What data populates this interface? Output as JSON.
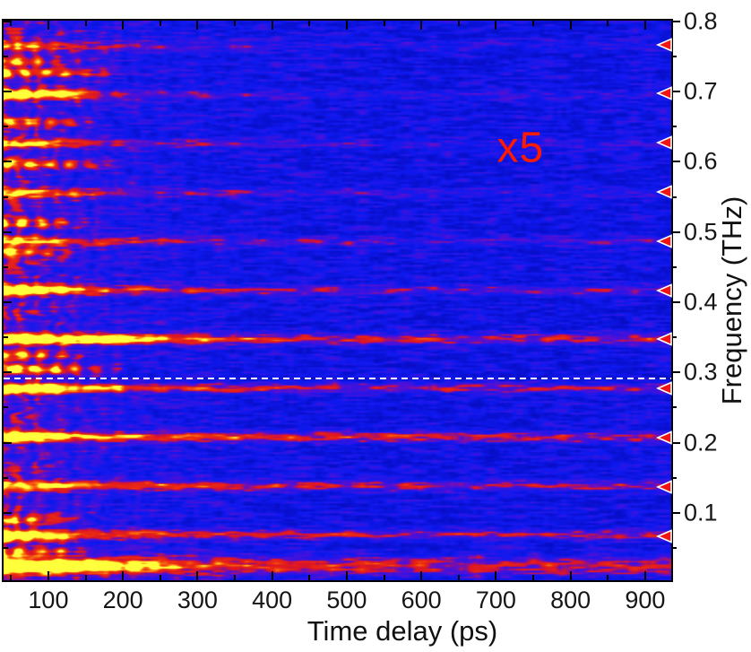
{
  "figure": {
    "background": "#ffffff"
  },
  "axes": {
    "x": {
      "label": "Time delay (ps)",
      "majors": [
        100,
        200,
        300,
        400,
        500,
        600,
        700,
        800,
        900
      ],
      "labels": [
        "100",
        "200",
        "300",
        "400",
        "500",
        "600",
        "700",
        "800",
        "900"
      ],
      "minors": [
        50,
        150,
        250,
        350,
        450,
        550,
        650,
        750,
        850
      ]
    },
    "y": {
      "label": "Frequency (THz)",
      "majors": [
        0.1,
        0.2,
        0.3,
        0.4,
        0.5,
        0.6,
        0.7,
        0.8
      ],
      "labels": [
        "0.1",
        "0.2",
        "0.3",
        "0.4",
        "0.5",
        "0.6",
        "0.7",
        "0.8"
      ],
      "minors": [
        0.05,
        0.15,
        0.25,
        0.35,
        0.45,
        0.55,
        0.65,
        0.75
      ]
    }
  },
  "annotations": {
    "gain_label": {
      "text": "x5",
      "color": "#ff1a00",
      "t": 733,
      "f": 0.62
    },
    "dashed_line": {
      "f": 0.291,
      "color": "#ffffff"
    }
  },
  "markers": {
    "shape": "left-pointing-triangle",
    "color": "#f01414",
    "outline": "#ffffff"
  },
  "chart_data": {
    "type": "heatmap",
    "title": "",
    "xlabel": "Time delay (ps)",
    "ylabel": "Frequency (THz)",
    "xlim": [
      40,
      935
    ],
    "ylim": [
      0.004,
      0.801
    ],
    "x_major_ticks": [
      100,
      200,
      300,
      400,
      500,
      600,
      700,
      800,
      900
    ],
    "y_major_ticks": [
      0.1,
      0.2,
      0.3,
      0.4,
      0.5,
      0.6,
      0.7,
      0.8
    ],
    "grid": false,
    "legend": "none",
    "scale_annotation": "x5",
    "dashed_line_freq": 0.291,
    "marker_frequencies": [
      0.067,
      0.137,
      0.207,
      0.277,
      0.347,
      0.417,
      0.487,
      0.557,
      0.627,
      0.697,
      0.766
    ],
    "description": "Time-frequency spectrogram: intense broadband red/yellow emission at short time delays (<250 ps) with vertical modulation, decaying into persistent narrow horizontal harmonic lines (spacing ~0.07 THz) on a blue background; triangles mark harmonic frequencies; white dashed line at 0.291 THz; spectrum above the line magnified x5.",
    "colormap_stops": [
      [
        0.0,
        "#000096"
      ],
      [
        0.28,
        "#0f19f0"
      ],
      [
        0.5,
        "#5a0fd2"
      ],
      [
        0.62,
        "#dc1428"
      ],
      [
        0.78,
        "#eb2d0f"
      ],
      [
        0.93,
        "#ff9614"
      ],
      [
        1.0,
        "#ffff3c"
      ]
    ],
    "background_noise": {
      "base": 0.25,
      "streak": 0.26,
      "speckle": 0.09
    },
    "burst": {
      "t0": 40,
      "tau": 120,
      "period": 27,
      "amp": 0.55
    },
    "harmonics": [
      {
        "f": 0.0695,
        "w": 0.0045,
        "fl": 0.3,
        "a0": 0.45,
        "tau": 160
      },
      {
        "f": 0.139,
        "w": 0.0045,
        "fl": 0.32,
        "a0": 0.45,
        "tau": 200
      },
      {
        "f": 0.2085,
        "w": 0.005,
        "fl": 0.34,
        "a0": 0.45,
        "tau": 220
      },
      {
        "f": 0.278,
        "w": 0.0045,
        "fl": 0.3,
        "a0": 0.45,
        "tau": 180
      },
      {
        "f": 0.348,
        "w": 0.005,
        "fl": 0.34,
        "a0": 0.5,
        "tau": 250
      },
      {
        "f": 0.4175,
        "w": 0.0045,
        "fl": 0.21,
        "a0": 0.5,
        "tau": 170
      },
      {
        "f": 0.487,
        "w": 0.0045,
        "fl": 0.15,
        "a0": 0.5,
        "tau": 150
      },
      {
        "f": 0.5565,
        "w": 0.0045,
        "fl": 0.12,
        "a0": 0.5,
        "tau": 140
      },
      {
        "f": 0.626,
        "w": 0.0045,
        "fl": 0.1,
        "a0": 0.5,
        "tau": 140
      },
      {
        "f": 0.6955,
        "w": 0.0045,
        "fl": 0.1,
        "a0": 0.55,
        "tau": 130
      },
      {
        "f": 0.7655,
        "w": 0.0045,
        "fl": 0.08,
        "a0": 0.45,
        "tau": 120
      },
      {
        "f": 0.025,
        "w": 0.009,
        "fl": 0.33,
        "a0": 0.5,
        "tau": 250
      }
    ],
    "left_streaks": [
      {
        "f": 0.743,
        "te": 150,
        "a": 0.8
      },
      {
        "f": 0.727,
        "te": 190,
        "a": 0.9
      },
      {
        "f": 0.699,
        "te": 160,
        "a": 0.85
      },
      {
        "f": 0.657,
        "te": 170,
        "a": 0.8
      },
      {
        "f": 0.597,
        "te": 200,
        "a": 0.85
      },
      {
        "f": 0.514,
        "te": 160,
        "a": 0.8
      },
      {
        "f": 0.472,
        "te": 150,
        "a": 0.7
      },
      {
        "f": 0.419,
        "te": 150,
        "a": 0.75
      },
      {
        "f": 0.348,
        "te": 260,
        "a": 0.9
      },
      {
        "f": 0.325,
        "te": 150,
        "a": 0.8
      },
      {
        "f": 0.305,
        "te": 200,
        "a": 0.95
      },
      {
        "f": 0.277,
        "te": 150,
        "a": 0.8
      },
      {
        "f": 0.209,
        "te": 130,
        "a": 0.7
      },
      {
        "f": 0.09,
        "te": 150,
        "a": 0.7
      },
      {
        "f": 0.065,
        "te": 140,
        "a": 0.8
      },
      {
        "f": 0.045,
        "te": 160,
        "a": 0.7
      },
      {
        "f": 0.025,
        "te": 280,
        "a": 1.05
      }
    ]
  }
}
